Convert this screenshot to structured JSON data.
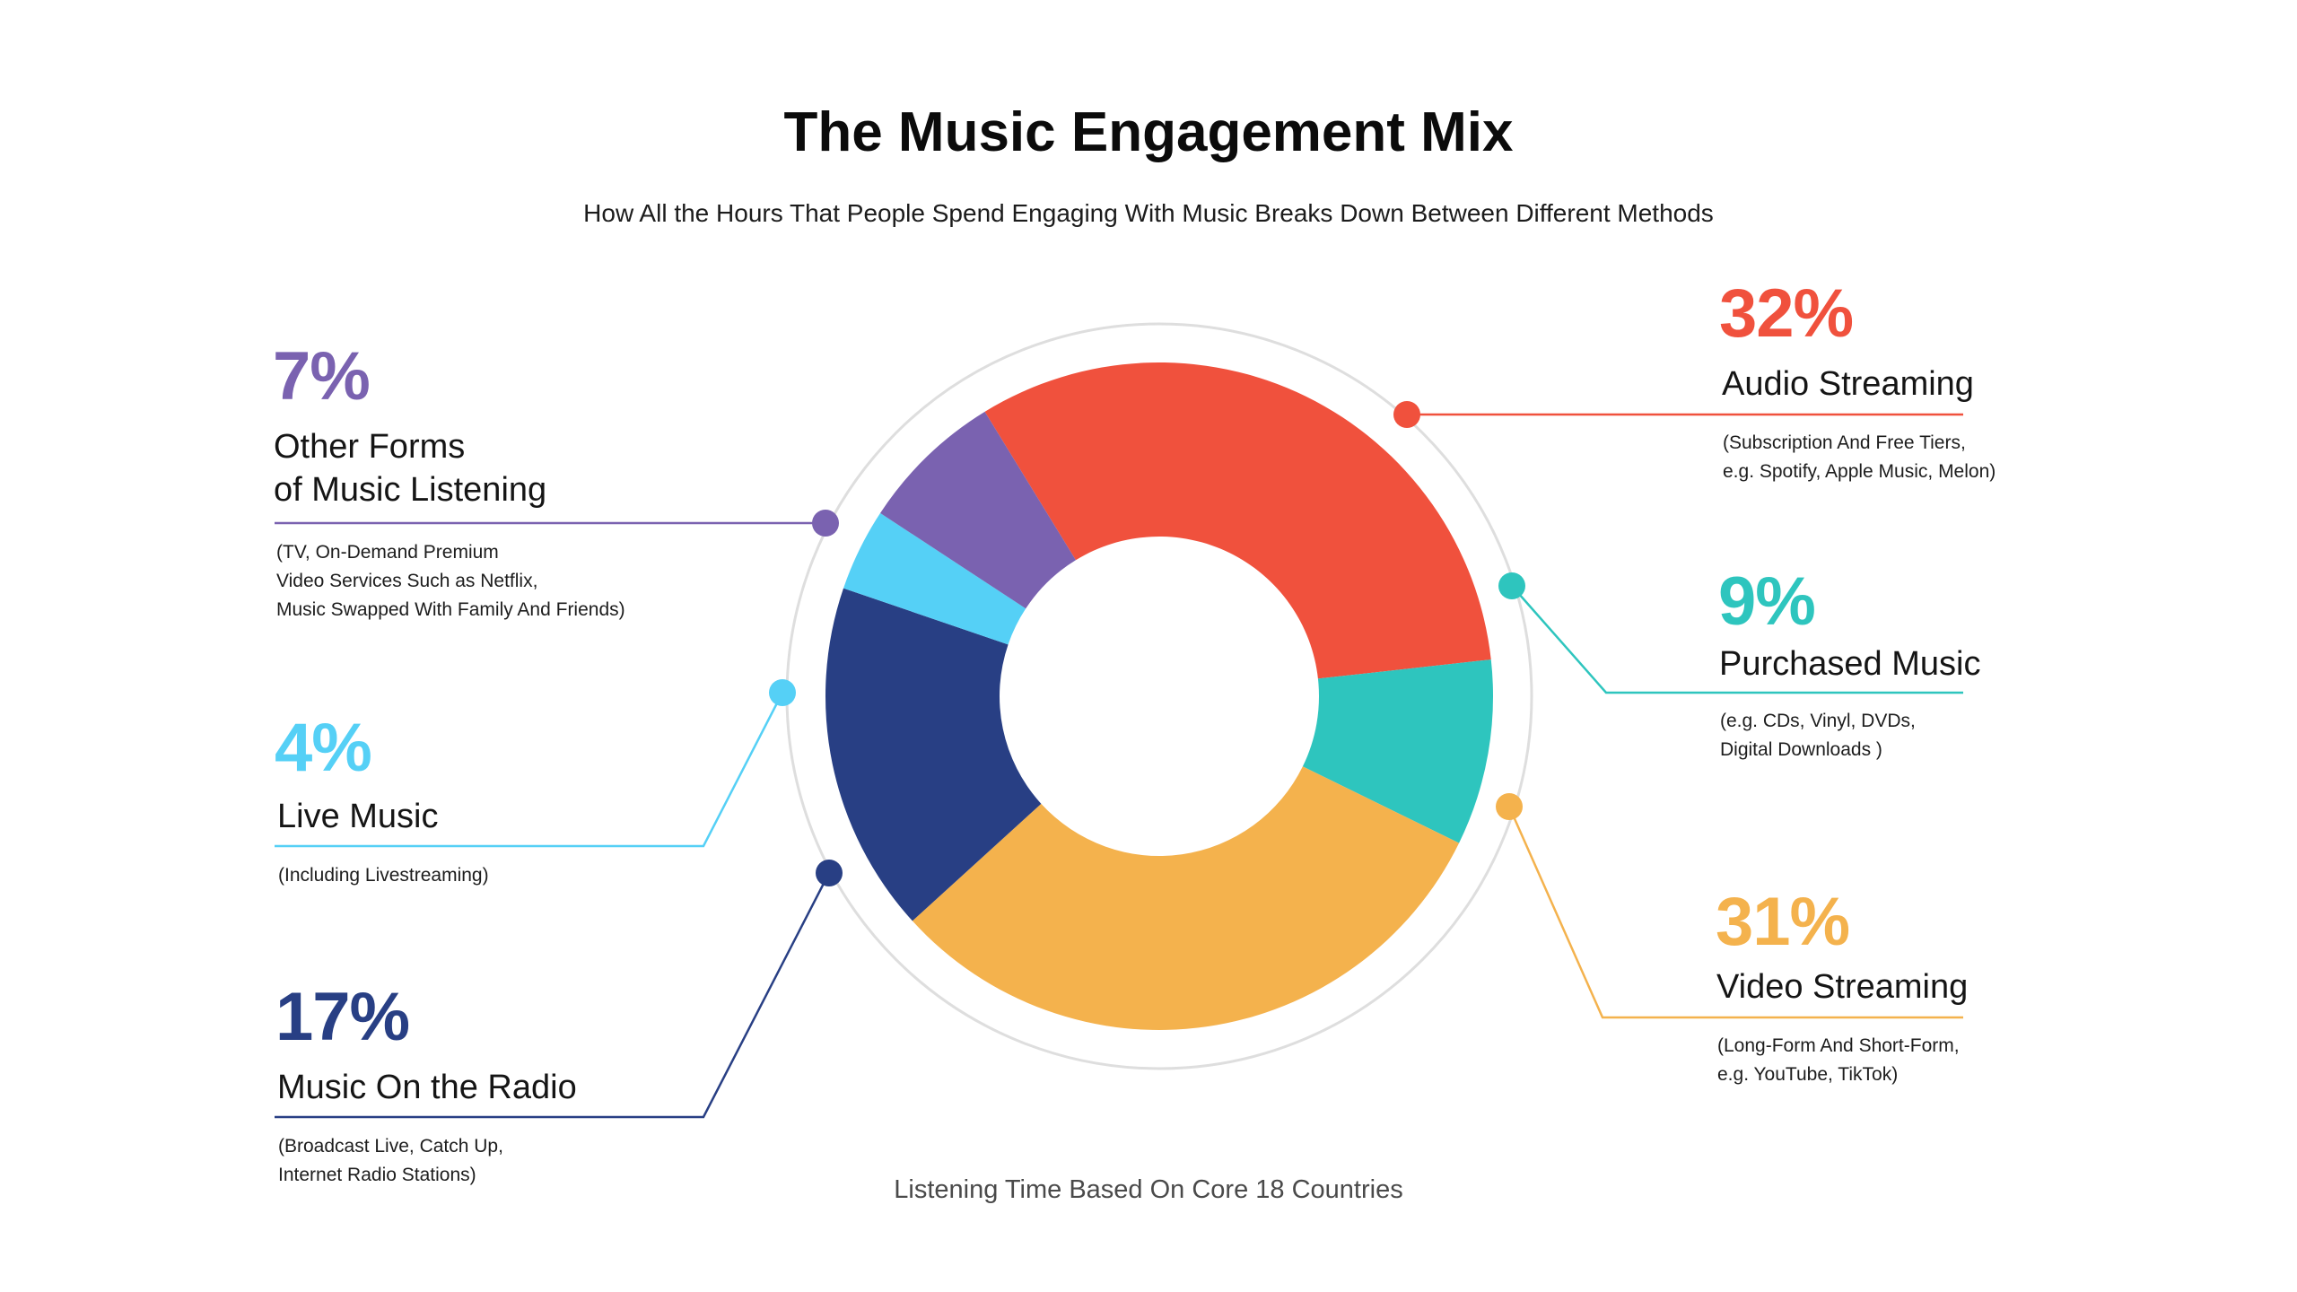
{
  "title": "The Music Engagement Mix",
  "subtitle": "How All the Hours That People Spend Engaging With Music Breaks Down Between Different Methods",
  "footer": "Listening Time Based On Core 18 Countries",
  "chart_data": {
    "type": "pie",
    "variant": "donut",
    "title": "The Music Engagement Mix",
    "subtitle": "How All the Hours That People Spend Engaging With Music Breaks Down Between Different Methods",
    "note": "Listening Time Based On Core 18 Countries",
    "start": "top",
    "direction": "clockwise",
    "series": [
      {
        "key": "audio",
        "percent_label": "32%",
        "value": 32,
        "color": "#f0513d",
        "label": "Audio Streaming",
        "description": [
          "(Subscription And Free Tiers,",
          "e.g. Spotify, Apple Music, Melon)"
        ]
      },
      {
        "key": "purchased",
        "percent_label": "9%",
        "value": 9,
        "color": "#2ec5be",
        "label": "Purchased Music",
        "description": [
          "(e.g. CDs, Vinyl, DVDs,",
          "Digital Downloads )"
        ]
      },
      {
        "key": "video",
        "percent_label": "31%",
        "value": 31,
        "color": "#f4b24d",
        "label": "Video Streaming",
        "description": [
          "(Long-Form And Short-Form,",
          "e.g. YouTube, TikTok)"
        ]
      },
      {
        "key": "radio",
        "percent_label": "17%",
        "value": 17,
        "color": "#283f84",
        "label": "Music On the Radio",
        "description": [
          "(Broadcast Live, Catch Up,",
          "Internet Radio Stations)"
        ]
      },
      {
        "key": "live",
        "percent_label": "4%",
        "value": 4,
        "color": "#55d0f6",
        "label": "Live Music",
        "description": [
          "(Including Livestreaming)"
        ]
      },
      {
        "key": "other",
        "percent_label": "7%",
        "value": 7,
        "color": "#7a62b0",
        "label": "Other Forms of Music Listening",
        "label_lines": [
          "Other Forms",
          "of Music Listening"
        ],
        "description": [
          "(TV, On-Demand Premium",
          "Video Services Such as Netflix,",
          "Music Swapped With Family And Friends)"
        ]
      }
    ]
  }
}
